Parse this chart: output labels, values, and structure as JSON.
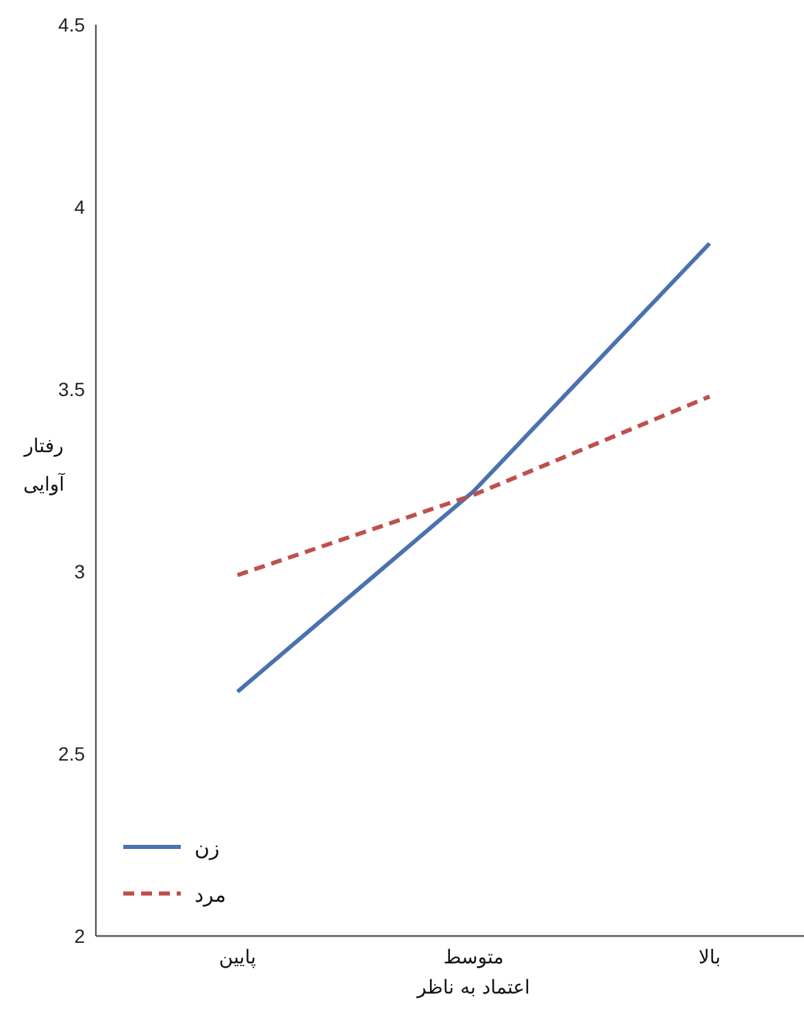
{
  "chart_data": {
    "type": "line",
    "xlabel": "اعتماد به ناظر",
    "ylabel": "رفتار آوایی",
    "categories": [
      "پایین",
      "متوسط",
      "بالا"
    ],
    "series": [
      {
        "name": "زن",
        "color": "#4a72b0",
        "values": [
          2.67,
          3.22,
          3.9
        ],
        "line_style": "solid"
      },
      {
        "name": "مرد",
        "color": "#c0504d",
        "values": [
          2.99,
          3.21,
          3.48
        ],
        "line_style": "dashed"
      }
    ],
    "ylim": [
      2,
      4.5
    ],
    "yticks": [
      2,
      2.5,
      3,
      3.5,
      4,
      4.5
    ],
    "legend": "bottom left",
    "grid": false,
    "marker": "none"
  }
}
